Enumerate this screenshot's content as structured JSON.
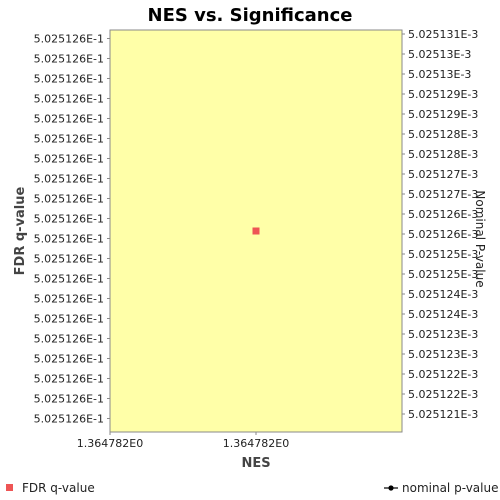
{
  "chart_data": {
    "type": "scatter",
    "title": "NES vs. Significance",
    "xlabel": "NES",
    "ylabel": "FDR q-value",
    "y2label": "Nominal P-value",
    "x_ticks": [
      "1.364782E0",
      "1.364782E0"
    ],
    "y_ticks": [
      "5.025126E-1",
      "5.025126E-1",
      "5.025126E-1",
      "5.025126E-1",
      "5.025126E-1",
      "5.025126E-1",
      "5.025126E-1",
      "5.025126E-1",
      "5.025126E-1",
      "5.025126E-1",
      "5.025126E-1",
      "5.025126E-1",
      "5.025126E-1",
      "5.025126E-1",
      "5.025126E-1",
      "5.025126E-1",
      "5.025126E-1",
      "5.025126E-1",
      "5.025126E-1",
      "5.025126E-1"
    ],
    "y2_ticks": [
      "5.025131E-3",
      "5.02513E-3",
      "5.02513E-3",
      "5.025129E-3",
      "5.025129E-3",
      "5.025128E-3",
      "5.025128E-3",
      "5.025127E-3",
      "5.025127E-3",
      "5.025126E-3",
      "5.025126E-3",
      "5.025125E-3",
      "5.025125E-3",
      "5.025124E-3",
      "5.025124E-3",
      "5.025123E-3",
      "5.025123E-3",
      "5.025122E-3",
      "5.025122E-3",
      "5.025121E-3"
    ],
    "series": [
      {
        "name": "FDR q-value",
        "points": [
          {
            "x": 1.364782,
            "y": 0.5025126
          }
        ],
        "color": "#ee5555",
        "marker": "square"
      },
      {
        "name": "nominal p-value",
        "points": [],
        "color": "#000000",
        "marker": "circle-line"
      }
    ],
    "plot_background": "#ffffa8",
    "grid": false,
    "legend_position": "bottom"
  }
}
